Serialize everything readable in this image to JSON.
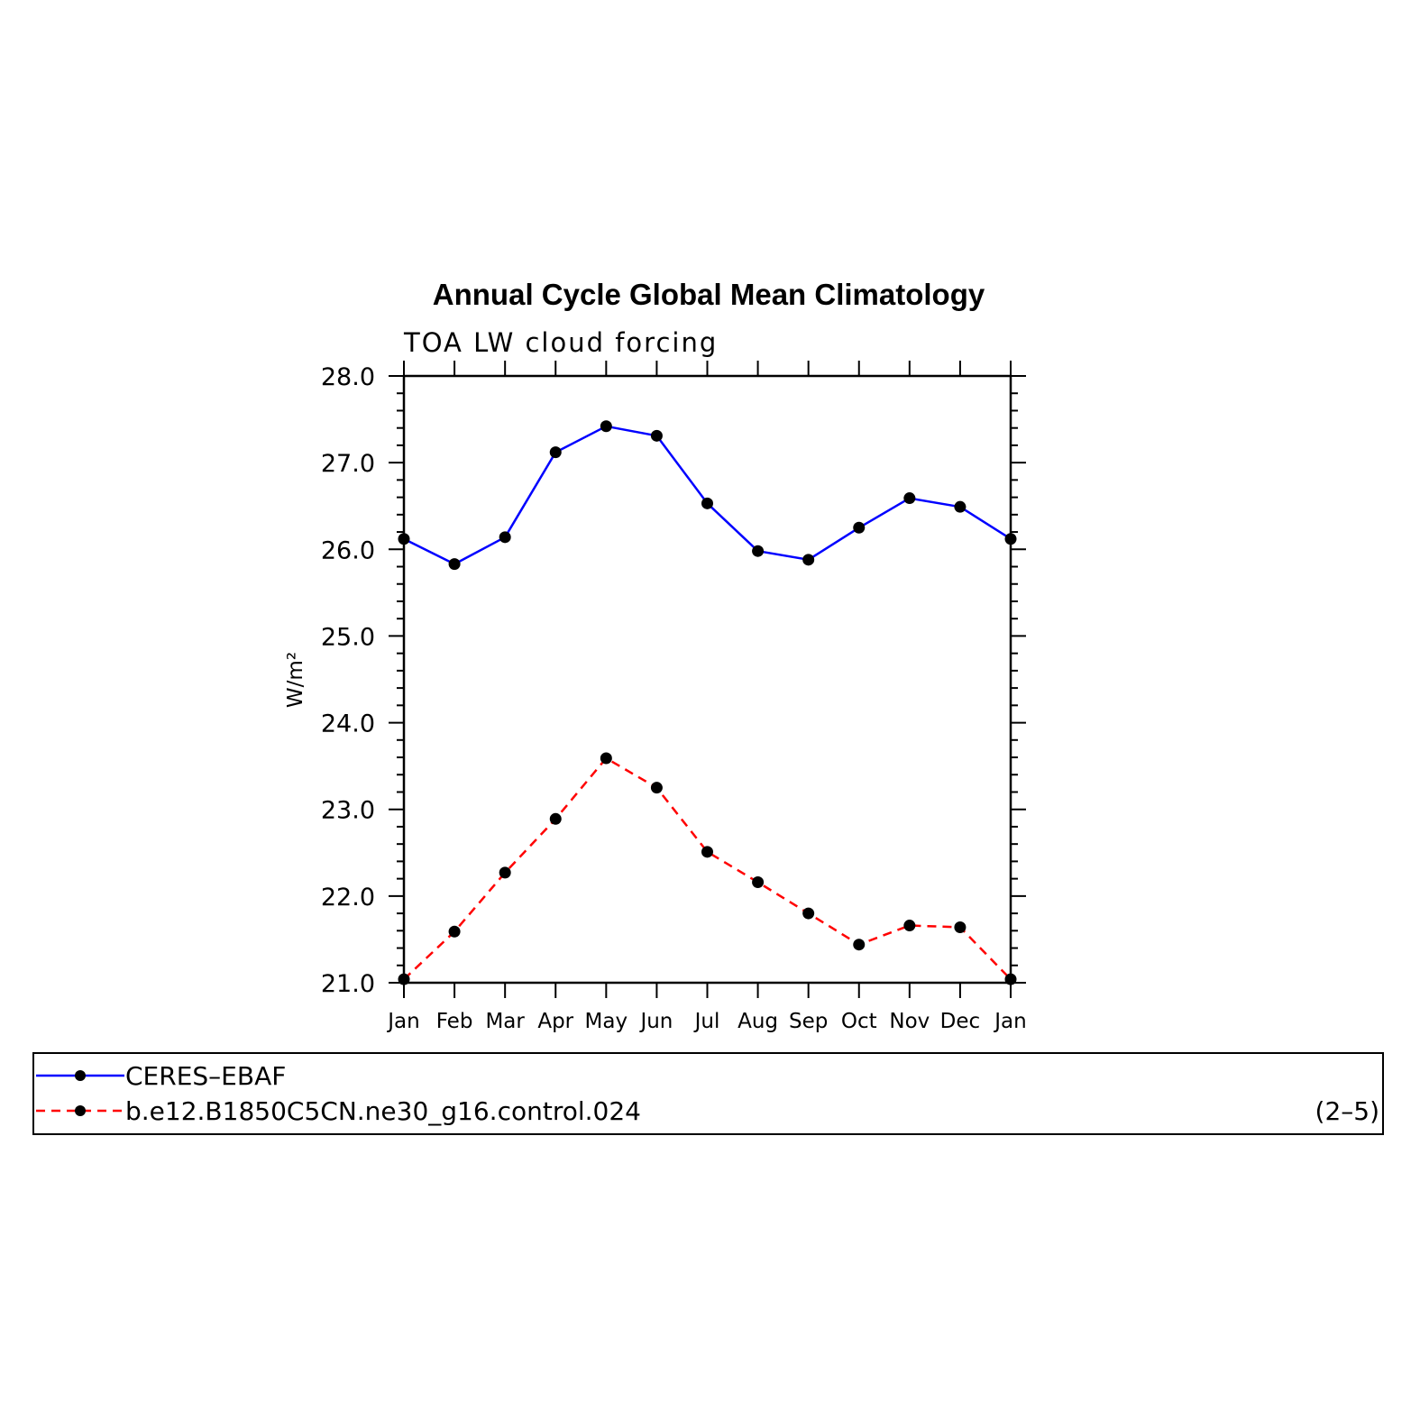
{
  "chart_data": {
    "type": "line",
    "title": "Annual Cycle Global Mean Climatology",
    "subtitle": "TOA LW cloud forcing",
    "ylabel": "W/m²",
    "xlabel": "",
    "categories": [
      "Jan",
      "Feb",
      "Mar",
      "Apr",
      "May",
      "Jun",
      "Jul",
      "Aug",
      "Sep",
      "Oct",
      "Nov",
      "Dec",
      "Jan"
    ],
    "ylim": [
      21.0,
      28.0
    ],
    "yticks": [
      "21.0",
      "22.0",
      "23.0",
      "24.0",
      "25.0",
      "26.0",
      "27.0",
      "28.0"
    ],
    "grid": false,
    "legend_position": "bottom",
    "series": [
      {
        "name": "CERES–EBAF",
        "color": "#0000ff",
        "line_style": "solid",
        "marker": "filled-circle",
        "values": [
          26.12,
          25.83,
          26.14,
          27.12,
          27.42,
          27.31,
          26.53,
          25.98,
          25.88,
          26.25,
          26.59,
          26.49,
          26.12
        ]
      },
      {
        "name": "b.e12.B1850C5CN.ne30_g16.control.024",
        "color": "#ff0000",
        "line_style": "dashed",
        "marker": "filled-circle",
        "values": [
          21.04,
          21.59,
          22.27,
          22.89,
          23.59,
          23.25,
          22.51,
          22.16,
          21.8,
          21.44,
          21.66,
          21.64,
          21.04
        ]
      }
    ],
    "annotation": "(2–5)"
  }
}
